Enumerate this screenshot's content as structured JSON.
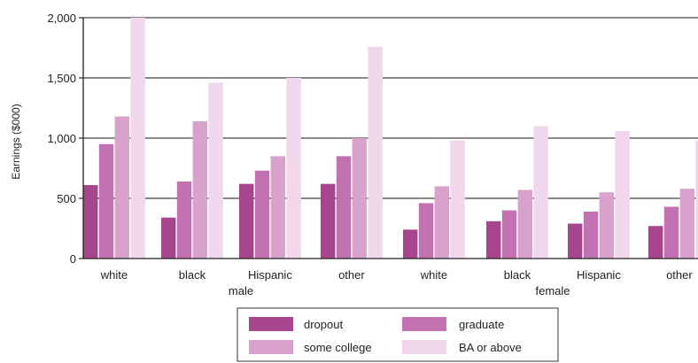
{
  "chart_data": {
    "type": "bar",
    "ylabel": "Earnings ($000)",
    "ylim": [
      0,
      2000
    ],
    "y_ticks": [
      "0",
      "500",
      "1,000",
      "1,500",
      "2,000"
    ],
    "y_tick_values": [
      0,
      500,
      1000,
      1500,
      2000
    ],
    "grid": true,
    "categories": [
      "white",
      "black",
      "Hispanic",
      "other",
      "white",
      "black",
      "Hispanic",
      "other"
    ],
    "groups": [
      {
        "label": "male",
        "categories": [
          "white",
          "black",
          "Hispanic",
          "other"
        ]
      },
      {
        "label": "female",
        "categories": [
          "white",
          "black",
          "Hispanic",
          "other"
        ]
      }
    ],
    "series": [
      {
        "name": "dropout",
        "color": "#a8458f",
        "values": [
          610,
          340,
          620,
          620,
          240,
          310,
          290,
          270
        ]
      },
      {
        "name": "graduate",
        "color": "#c272b0",
        "values": [
          950,
          640,
          730,
          850,
          460,
          400,
          390,
          430
        ]
      },
      {
        "name": "some college",
        "color": "#d9a2cd",
        "values": [
          1180,
          1140,
          850,
          1000,
          600,
          570,
          550,
          580
        ]
      },
      {
        "name": "BA or above",
        "color": "#f0d7ec",
        "values": [
          2000,
          1460,
          1500,
          1760,
          980,
          1100,
          1060,
          980
        ]
      }
    ],
    "legend_position": "bottom"
  }
}
